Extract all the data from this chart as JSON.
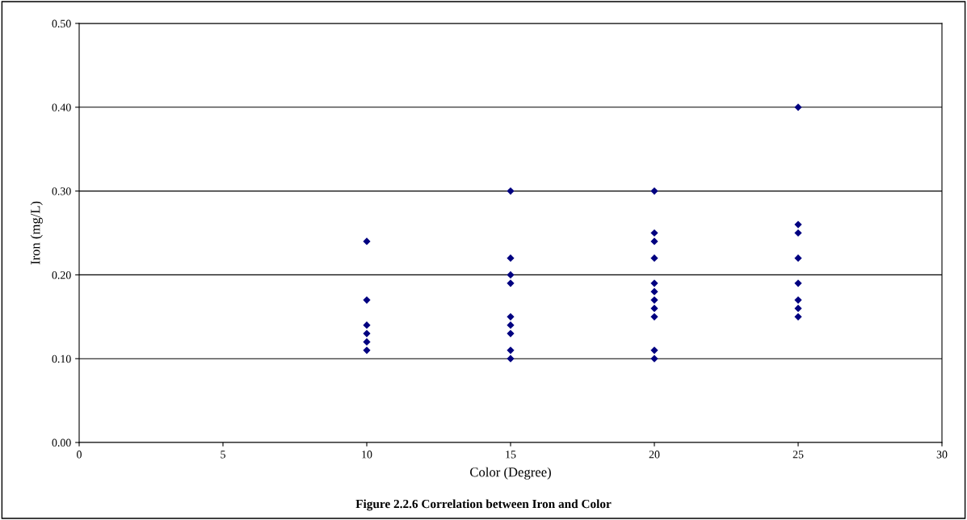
{
  "chart_data": {
    "type": "scatter",
    "xlabel": "Color (Degree)",
    "ylabel": "Iron (mg/L)",
    "annotations": [
      "Figure 2.2.6 Correlation between Iron and Color"
    ],
    "marker": "diamond",
    "grid": "y",
    "series": [
      {
        "color": "#000080",
        "x": [
          10,
          10,
          10,
          10,
          10,
          10,
          15,
          15,
          15,
          15,
          15,
          15,
          15,
          15,
          15,
          20,
          20,
          20,
          20,
          20,
          20,
          20,
          20,
          20,
          20,
          20,
          25,
          25,
          25,
          25,
          25,
          25,
          25,
          25
        ],
        "values": [
          0.24,
          0.17,
          0.14,
          0.13,
          0.12,
          0.11,
          0.3,
          0.22,
          0.2,
          0.19,
          0.15,
          0.14,
          0.13,
          0.11,
          0.1,
          0.3,
          0.25,
          0.24,
          0.22,
          0.19,
          0.18,
          0.17,
          0.16,
          0.15,
          0.11,
          0.1,
          0.4,
          0.26,
          0.25,
          0.22,
          0.19,
          0.17,
          0.16,
          0.15
        ]
      }
    ],
    "xlim": [
      0,
      30
    ],
    "xticks": [
      0,
      5,
      10,
      15,
      20,
      25,
      30
    ],
    "ylim": [
      0,
      0.5
    ],
    "yticks": [
      {
        "value": 0,
        "label": "0.00"
      },
      {
        "value": 0.1,
        "label": "0.10"
      },
      {
        "value": 0.2,
        "label": "0.20"
      },
      {
        "value": 0.3,
        "label": "0.30"
      },
      {
        "value": 0.4,
        "label": "0.40"
      },
      {
        "value": 0.5,
        "label": "0.50"
      }
    ]
  }
}
